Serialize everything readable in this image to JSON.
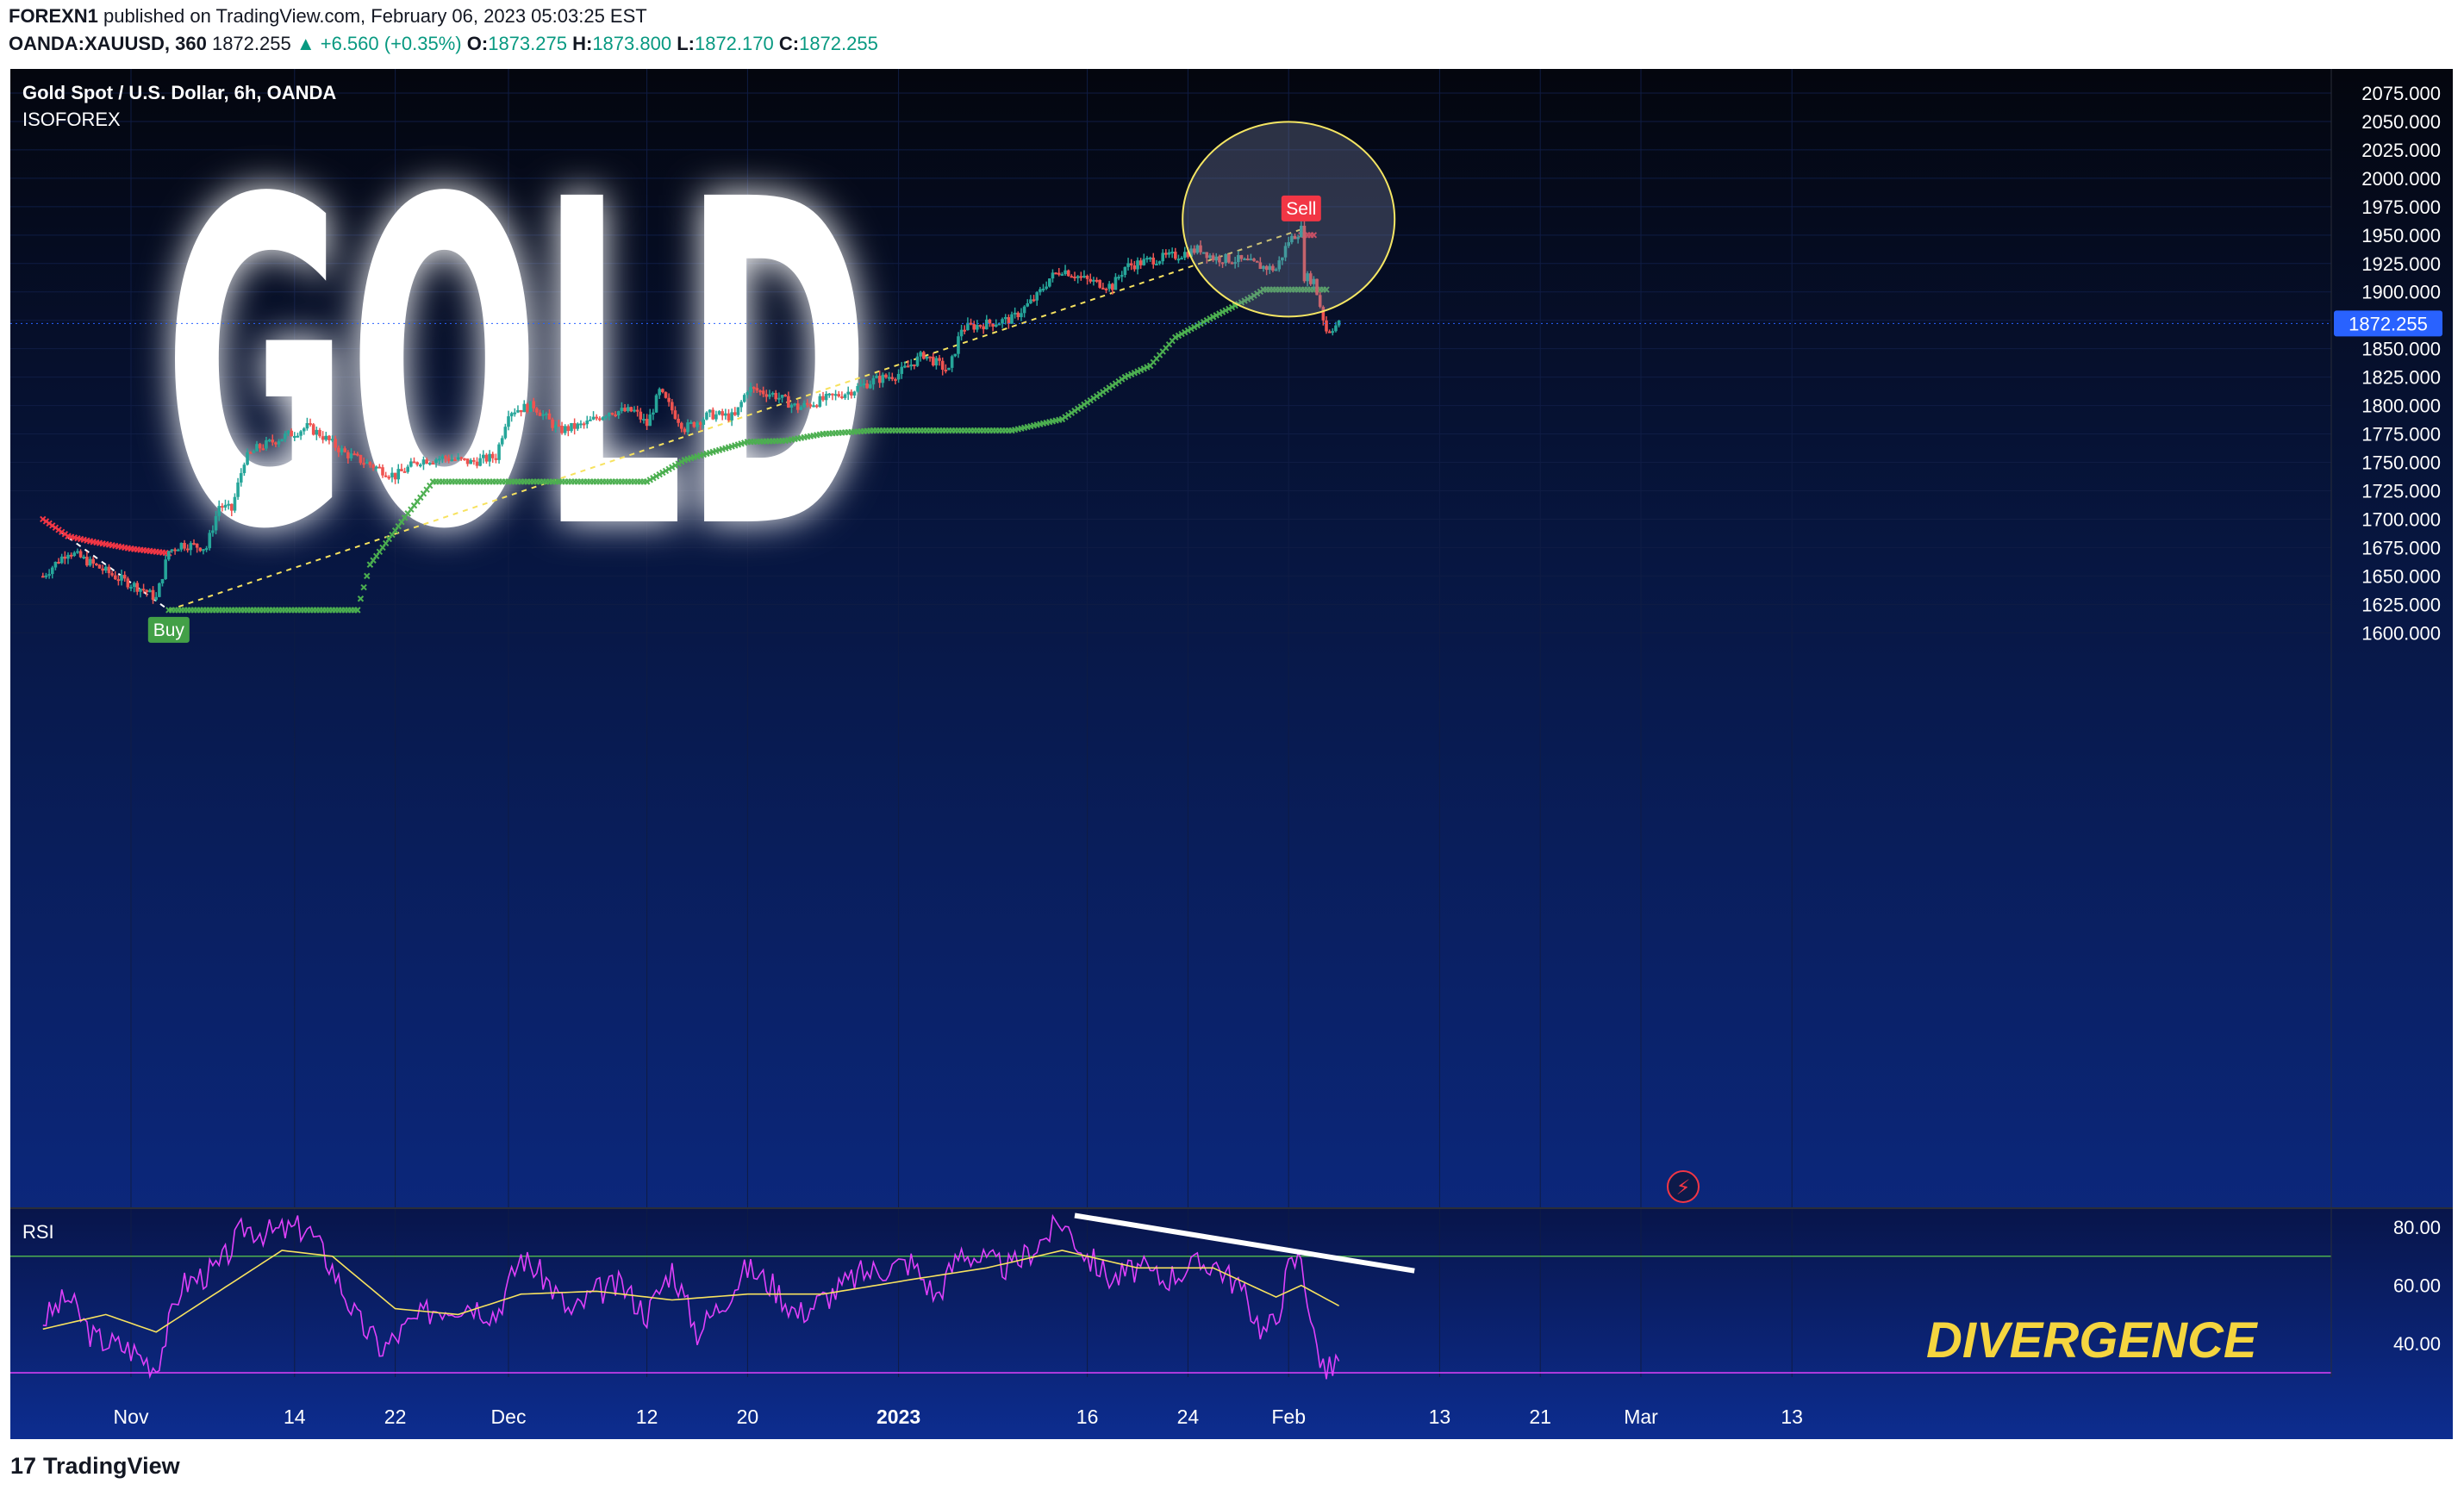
{
  "header": {
    "publisher": "FOREXN1",
    "published_text": "published on TradingView.com, February 06, 2023 05:03:25 EST",
    "symbol": "OANDA:XAUUSD, 360",
    "last": "1872.255",
    "change": "▲ +6.560 (+0.35%)",
    "o_label": "O:",
    "o": "1873.275",
    "h_label": "H:",
    "h": "1873.800",
    "l_label": "L:",
    "l": "1872.170",
    "c_label": "C:",
    "c": "1872.255"
  },
  "legend": {
    "title": "Gold Spot / U.S. Dollar, 6h, OANDA",
    "indicator": "ISOFOREX"
  },
  "overlay_text": {
    "big_title": "GOLD",
    "divergence": "DIVERGENCE",
    "buy": "Buy",
    "sell": "Sell"
  },
  "rsi_panel": {
    "label": "RSI"
  },
  "footer": {
    "brand": "TradingView",
    "logo": "17"
  },
  "colors": {
    "up": "#26a69a",
    "down": "#ef5350",
    "bg_top": "#050813",
    "bg_bottom": "#0d2c8e",
    "stop_long": "#4caf50",
    "stop_short": "#f23645",
    "rsi_line": "#e040fb",
    "rsi_ma": "#f7e25f",
    "divergence_text": "#f5d53f",
    "price_tag": "#2962ff"
  },
  "chart_data": {
    "type": "candlestick",
    "title": "Gold Spot / U.S. Dollar, 6h, OANDA",
    "price_axis_ticks": [
      "2075.000",
      "2050.000",
      "2025.000",
      "2000.000",
      "1975.000",
      "1950.000",
      "1925.000",
      "1900.000",
      "1875.000",
      "1850.000",
      "1825.000",
      "1800.000",
      "1775.000",
      "1750.000",
      "1725.000",
      "1700.000",
      "1675.000",
      "1650.000",
      "1625.000",
      "1600.000"
    ],
    "price_axis_values": [
      2075,
      2050,
      2025,
      2000,
      1975,
      1950,
      1925,
      1900,
      1875,
      1850,
      1825,
      1800,
      1775,
      1750,
      1725,
      1700,
      1675,
      1650,
      1625,
      1600
    ],
    "ylim": [
      1585,
      2085
    ],
    "last_price_label": "1872.255",
    "last_price": 1872.255,
    "x_ticks": [
      "Nov",
      "14",
      "22",
      "Dec",
      "12",
      "20",
      "2023",
      "16",
      "24",
      "Feb",
      "13",
      "21",
      "Mar",
      "13"
    ],
    "x_tick_dates": [
      "2022-11-01",
      "2022-11-14",
      "2022-11-22",
      "2022-12-01",
      "2022-12-12",
      "2022-12-20",
      "2023-01-01",
      "2023-01-16",
      "2023-01-24",
      "2023-02-01",
      "2023-02-13",
      "2023-02-21",
      "2023-03-01",
      "2023-03-13"
    ],
    "price_path": [
      [
        "2022-10-25",
        1650
      ],
      [
        "2022-10-27",
        1672
      ],
      [
        "2022-10-29",
        1660
      ],
      [
        "2022-10-31",
        1648
      ],
      [
        "2022-11-02",
        1638
      ],
      [
        "2022-11-03",
        1630
      ],
      [
        "2022-11-04",
        1672
      ],
      [
        "2022-11-05",
        1678
      ],
      [
        "2022-11-07",
        1675
      ],
      [
        "2022-11-08",
        1712
      ],
      [
        "2022-11-09",
        1708
      ],
      [
        "2022-11-10",
        1752
      ],
      [
        "2022-11-11",
        1762
      ],
      [
        "2022-11-13",
        1772
      ],
      [
        "2022-11-15",
        1781
      ],
      [
        "2022-11-16",
        1775
      ],
      [
        "2022-11-18",
        1758
      ],
      [
        "2022-11-20",
        1748
      ],
      [
        "2022-11-22",
        1738
      ],
      [
        "2022-11-23",
        1745
      ],
      [
        "2022-11-24",
        1752
      ],
      [
        "2022-11-26",
        1754
      ],
      [
        "2022-11-28",
        1750
      ],
      [
        "2022-11-30",
        1755
      ],
      [
        "2022-12-01",
        1795
      ],
      [
        "2022-12-03",
        1800
      ],
      [
        "2022-12-05",
        1778
      ],
      [
        "2022-12-07",
        1783
      ],
      [
        "2022-12-09",
        1795
      ],
      [
        "2022-12-11",
        1795
      ],
      [
        "2022-12-12",
        1783
      ],
      [
        "2022-12-13",
        1812
      ],
      [
        "2022-12-15",
        1780
      ],
      [
        "2022-12-17",
        1792
      ],
      [
        "2022-12-19",
        1790
      ],
      [
        "2022-12-20",
        1815
      ],
      [
        "2022-12-22",
        1810
      ],
      [
        "2022-12-24",
        1798
      ],
      [
        "2022-12-26",
        1805
      ],
      [
        "2022-12-28",
        1812
      ],
      [
        "2022-12-30",
        1822
      ],
      [
        "2023-01-01",
        1828
      ],
      [
        "2023-01-03",
        1845
      ],
      [
        "2023-01-05",
        1830
      ],
      [
        "2023-01-06",
        1868
      ],
      [
        "2023-01-08",
        1872
      ],
      [
        "2023-01-10",
        1876
      ],
      [
        "2023-01-12",
        1896
      ],
      [
        "2023-01-13",
        1912
      ],
      [
        "2023-01-14",
        1920
      ],
      [
        "2023-01-16",
        1910
      ],
      [
        "2023-01-18",
        1905
      ],
      [
        "2023-01-19",
        1922
      ],
      [
        "2023-01-21",
        1928
      ],
      [
        "2023-01-23",
        1932
      ],
      [
        "2023-01-25",
        1938
      ],
      [
        "2023-01-26",
        1930
      ],
      [
        "2023-01-28",
        1928
      ],
      [
        "2023-01-30",
        1922
      ],
      [
        "2023-01-31",
        1920
      ],
      [
        "2023-02-01",
        1945
      ],
      [
        "2023-02-02",
        1955
      ],
      [
        "2023-02-02",
        1915
      ],
      [
        "2023-02-03",
        1910
      ],
      [
        "2023-02-04",
        1866
      ],
      [
        "2023-02-05",
        1872
      ]
    ],
    "stop_long": [
      [
        "2022-11-04",
        1620
      ],
      [
        "2022-11-19",
        1620
      ],
      [
        "2022-11-20",
        1660
      ],
      [
        "2022-11-23",
        1705
      ],
      [
        "2022-11-25",
        1733
      ],
      [
        "2022-12-12",
        1733
      ],
      [
        "2022-12-15",
        1752
      ],
      [
        "2022-12-20",
        1768
      ],
      [
        "2022-12-23",
        1769
      ],
      [
        "2022-12-26",
        1775
      ],
      [
        "2022-12-30",
        1778
      ],
      [
        "2023-01-10",
        1778
      ],
      [
        "2023-01-14",
        1788
      ],
      [
        "2023-01-17",
        1810
      ],
      [
        "2023-01-19",
        1825
      ],
      [
        "2023-01-21",
        1835
      ],
      [
        "2023-01-23",
        1860
      ],
      [
        "2023-01-26",
        1878
      ],
      [
        "2023-01-29",
        1895
      ],
      [
        "2023-01-30",
        1902
      ],
      [
        "2023-02-04",
        1902
      ]
    ],
    "stop_short": [
      [
        "2022-10-25",
        1700
      ],
      [
        "2022-10-27",
        1685
      ],
      [
        "2022-10-29",
        1680
      ],
      [
        "2022-11-01",
        1674
      ],
      [
        "2022-11-04",
        1670
      ],
      [
        "2023-02-02",
        1950
      ],
      [
        "2023-02-03",
        1950
      ]
    ],
    "trendlines": [
      {
        "from": [
          "2022-10-25",
          1700
        ],
        "to": [
          "2022-11-04",
          1620
        ],
        "style": "dashed",
        "color": "#ffffff"
      },
      {
        "from": [
          "2022-11-04",
          1620
        ],
        "to": [
          "2023-02-02",
          1955
        ],
        "style": "dashed",
        "color": "#f7e25f"
      }
    ],
    "signals": [
      {
        "label": "Buy",
        "date": "2022-11-04",
        "price": 1617,
        "color": "#43a047"
      },
      {
        "label": "Sell",
        "date": "2023-02-02",
        "price": 1956,
        "color": "#f23645"
      }
    ],
    "highlight_circle": {
      "center_date": "2023-02-01",
      "center_price": 1964,
      "color": "#f5e663"
    },
    "rsi": {
      "label": "RSI",
      "ticks": [
        "80.00",
        "60.00",
        "40.00"
      ],
      "tick_values": [
        80,
        60,
        40
      ],
      "levels": [
        70,
        30
      ],
      "ylim": [
        25,
        85
      ],
      "path": [
        [
          "2022-10-25",
          48
        ],
        [
          "2022-10-27",
          56
        ],
        [
          "2022-10-29",
          42
        ],
        [
          "2022-11-01",
          38
        ],
        [
          "2022-11-03",
          32
        ],
        [
          "2022-11-05",
          60
        ],
        [
          "2022-11-08",
          66
        ],
        [
          "2022-11-10",
          80
        ],
        [
          "2022-11-12",
          78
        ],
        [
          "2022-11-15",
          80
        ],
        [
          "2022-11-17",
          66
        ],
        [
          "2022-11-19",
          48
        ],
        [
          "2022-11-21",
          38
        ],
        [
          "2022-11-23",
          46
        ],
        [
          "2022-11-25",
          52
        ],
        [
          "2022-11-28",
          54
        ],
        [
          "2022-11-30",
          50
        ],
        [
          "2022-12-02",
          70
        ],
        [
          "2022-12-04",
          62
        ],
        [
          "2022-12-06",
          50
        ],
        [
          "2022-12-08",
          58
        ],
        [
          "2022-12-10",
          60
        ],
        [
          "2022-12-12",
          50
        ],
        [
          "2022-12-14",
          66
        ],
        [
          "2022-12-16",
          44
        ],
        [
          "2022-12-18",
          54
        ],
        [
          "2022-12-20",
          66
        ],
        [
          "2022-12-22",
          60
        ],
        [
          "2022-12-24",
          50
        ],
        [
          "2022-12-27",
          58
        ],
        [
          "2022-12-29",
          64
        ],
        [
          "2023-01-02",
          68
        ],
        [
          "2023-01-04",
          56
        ],
        [
          "2023-01-06",
          72
        ],
        [
          "2023-01-08",
          68
        ],
        [
          "2023-01-10",
          66
        ],
        [
          "2023-01-12",
          74
        ],
        [
          "2023-01-14",
          82
        ],
        [
          "2023-01-16",
          70
        ],
        [
          "2023-01-18",
          62
        ],
        [
          "2023-01-20",
          66
        ],
        [
          "2023-01-22",
          62
        ],
        [
          "2023-01-24",
          66
        ],
        [
          "2023-01-26",
          68
        ],
        [
          "2023-01-28",
          60
        ],
        [
          "2023-01-30",
          44
        ],
        [
          "2023-01-31",
          48
        ],
        [
          "2023-02-01",
          66
        ],
        [
          "2023-02-02",
          70
        ],
        [
          "2023-02-03",
          42
        ],
        [
          "2023-02-04",
          30
        ],
        [
          "2023-02-05",
          34
        ]
      ],
      "ma_path": [
        [
          "2022-10-25",
          45
        ],
        [
          "2022-10-30",
          50
        ],
        [
          "2022-11-03",
          44
        ],
        [
          "2022-11-08",
          58
        ],
        [
          "2022-11-13",
          72
        ],
        [
          "2022-11-17",
          70
        ],
        [
          "2022-11-22",
          52
        ],
        [
          "2022-11-27",
          50
        ],
        [
          "2022-12-02",
          57
        ],
        [
          "2022-12-08",
          58
        ],
        [
          "2022-12-14",
          55
        ],
        [
          "2022-12-20",
          57
        ],
        [
          "2022-12-26",
          57
        ],
        [
          "2023-01-02",
          62
        ],
        [
          "2023-01-08",
          66
        ],
        [
          "2023-01-14",
          72
        ],
        [
          "2023-01-20",
          66
        ],
        [
          "2023-01-26",
          66
        ],
        [
          "2023-01-31",
          56
        ],
        [
          "2023-02-02",
          60
        ],
        [
          "2023-02-05",
          53
        ]
      ],
      "divergence_line": {
        "from": [
          "2023-01-15",
          84
        ],
        "to": [
          "2023-02-11",
          65
        ],
        "color": "#ffffff"
      }
    }
  }
}
